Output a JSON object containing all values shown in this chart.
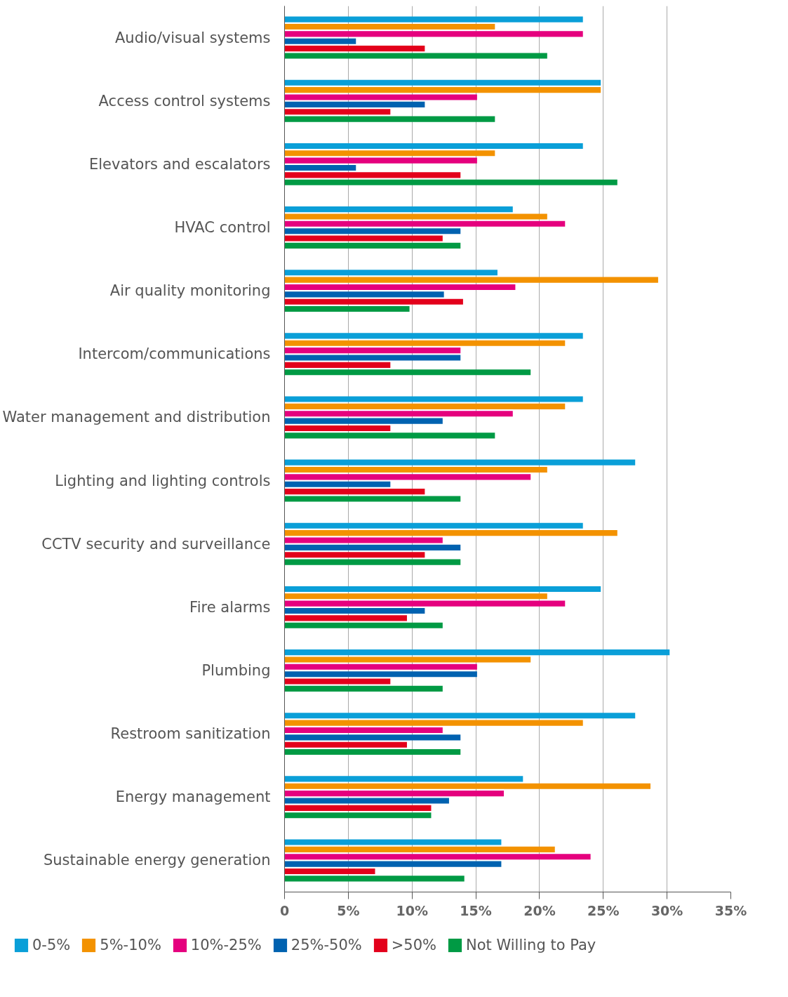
{
  "chart_data": {
    "type": "bar",
    "orientation": "horizontal",
    "categories": [
      "Audio/visual systems",
      "Access control systems",
      "Elevators and escalators",
      "HVAC control",
      "Air quality monitoring",
      "Intercom/communications",
      "Water management and distribution",
      "Lighting and lighting controls",
      "CCTV security and surveillance",
      "Fire alarms",
      "Plumbing",
      "Restroom sanitization",
      "Energy management",
      "Sustainable energy generation"
    ],
    "series": [
      {
        "name": "0-5%",
        "color": "#0a9fd8",
        "values": [
          23.4,
          24.8,
          23.4,
          17.9,
          16.7,
          23.4,
          23.4,
          27.5,
          23.4,
          24.8,
          30.2,
          27.5,
          18.7,
          17.0
        ]
      },
      {
        "name": "5%-10%",
        "color": "#f39200",
        "values": [
          16.5,
          24.8,
          16.5,
          20.6,
          29.3,
          22.0,
          22.0,
          20.6,
          26.1,
          20.6,
          19.3,
          23.4,
          28.7,
          21.2
        ]
      },
      {
        "name": "10%-25%",
        "color": "#e5007e",
        "values": [
          23.4,
          15.1,
          15.1,
          22.0,
          18.1,
          13.8,
          17.9,
          19.3,
          12.4,
          22.0,
          15.1,
          12.4,
          17.2,
          24.0
        ]
      },
      {
        "name": "25%-50%",
        "color": "#0062b0",
        "values": [
          5.6,
          11.0,
          5.6,
          13.8,
          12.5,
          13.8,
          12.4,
          8.3,
          13.8,
          11.0,
          15.1,
          13.8,
          12.9,
          17.0
        ]
      },
      {
        "name": ">50%",
        "color": "#e3001b",
        "values": [
          11.0,
          8.3,
          13.8,
          12.4,
          14.0,
          8.3,
          8.3,
          11.0,
          11.0,
          9.6,
          8.3,
          9.6,
          11.5,
          7.1
        ]
      },
      {
        "name": "Not Willing to Pay",
        "color": "#009a44",
        "values": [
          20.6,
          16.5,
          26.1,
          13.8,
          9.8,
          19.3,
          16.5,
          13.8,
          13.8,
          12.4,
          12.4,
          13.8,
          11.5,
          14.1
        ]
      }
    ],
    "xlim": [
      0,
      35
    ],
    "xticks": [
      {
        "value": 0,
        "label": "0"
      },
      {
        "value": 5,
        "label": "5%"
      },
      {
        "value": 10,
        "label": "10%"
      },
      {
        "value": 15,
        "label": "15%"
      },
      {
        "value": 20,
        "label": "20%"
      },
      {
        "value": 25,
        "label": "25%"
      },
      {
        "value": 30,
        "label": "30%"
      },
      {
        "value": 35,
        "label": "35%"
      }
    ],
    "grid": "x",
    "legend": "bottom"
  }
}
